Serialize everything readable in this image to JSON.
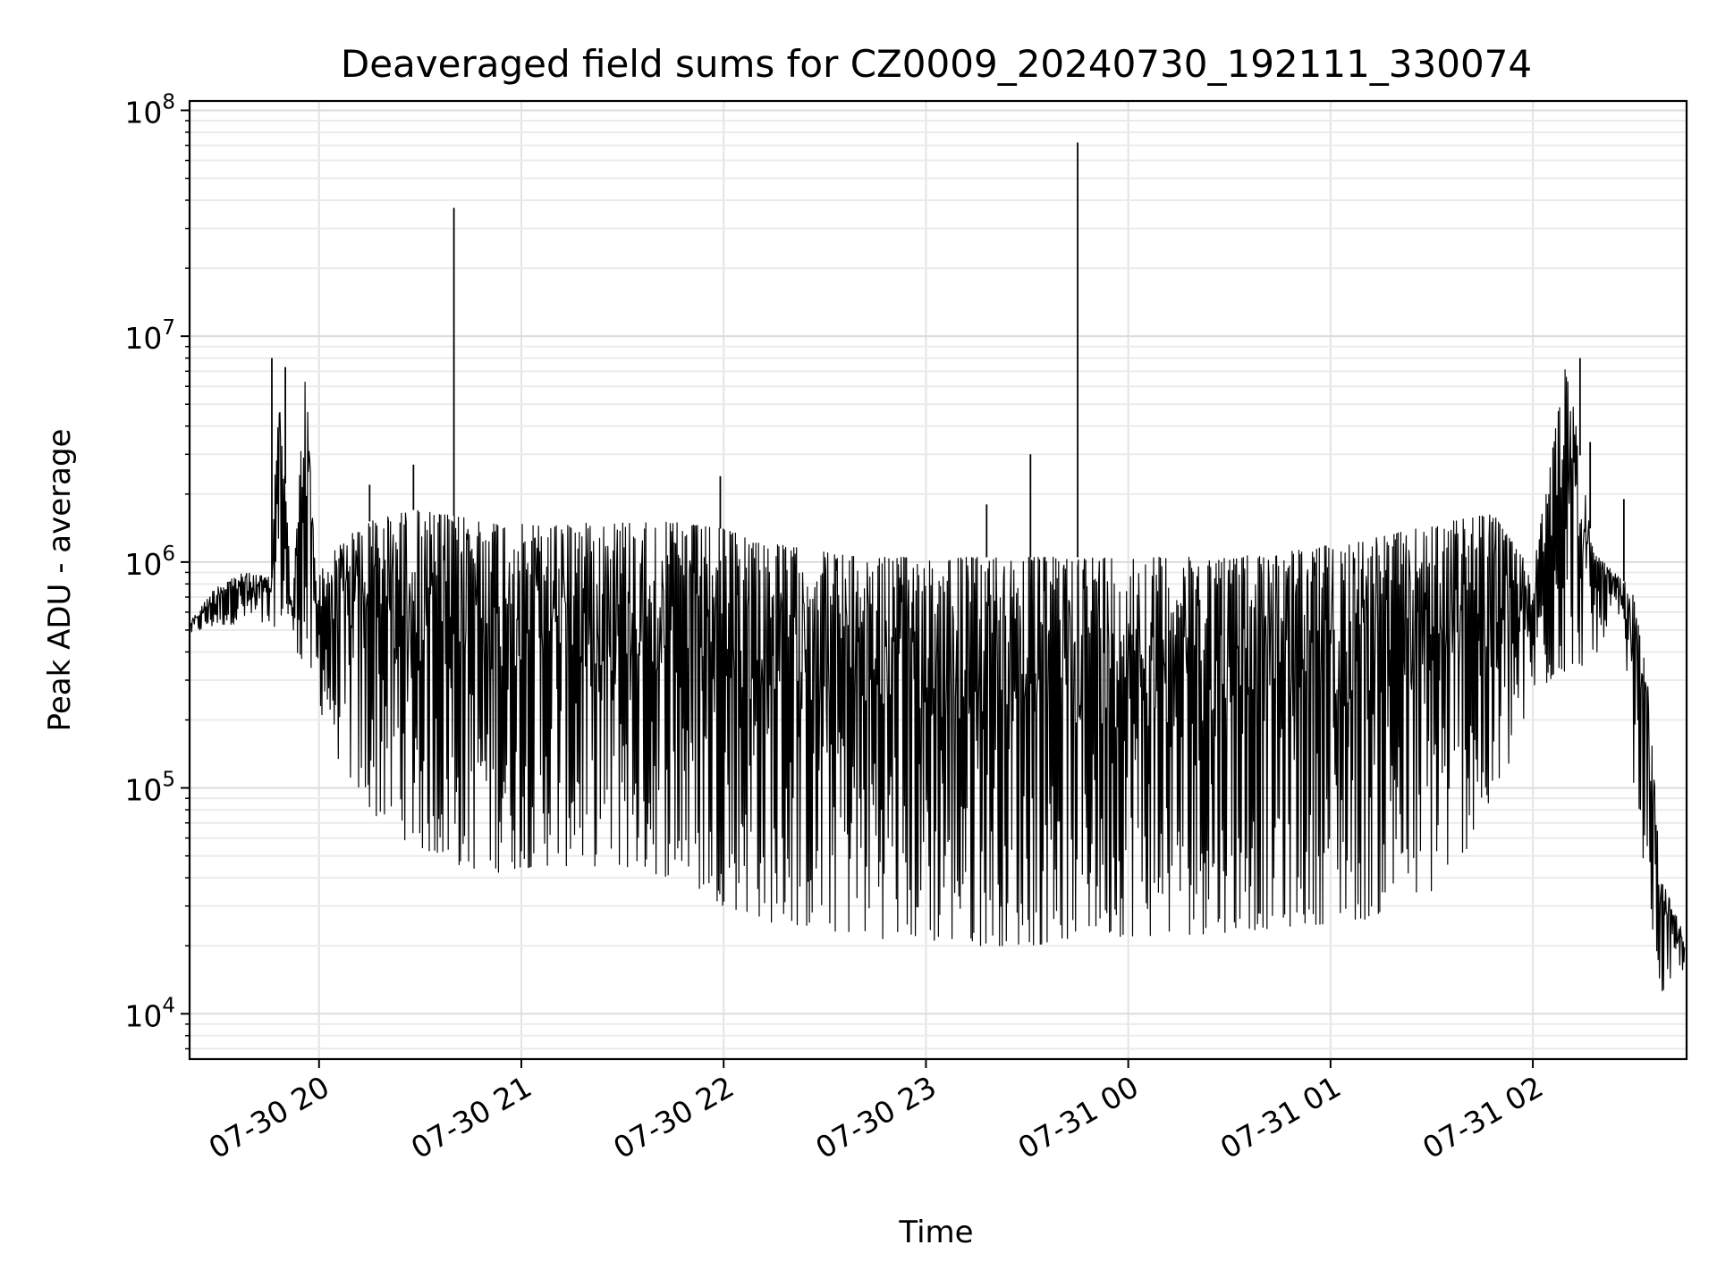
{
  "chart_data": {
    "type": "line",
    "title": "Deaveraged field sums for CZ0009_20240730_192111_330074",
    "xlabel": "Time",
    "ylabel": "Peak ADU - average",
    "yscale": "log",
    "ylim": [
      6300,
      110000000
    ],
    "xlim": [
      "2024-07-30 19:21:36",
      "2024-07-31 02:45:36"
    ],
    "grid": true,
    "line_color": "#000000",
    "x_ticks": [
      {
        "label": "07-30 20",
        "value": "2024-07-30 20:00"
      },
      {
        "label": "07-30 21",
        "value": "2024-07-30 21:00"
      },
      {
        "label": "07-30 22",
        "value": "2024-07-30 22:00"
      },
      {
        "label": "07-30 23",
        "value": "2024-07-30 23:00"
      },
      {
        "label": "07-31 00",
        "value": "2024-07-31 00:00"
      },
      {
        "label": "07-31 01",
        "value": "2024-07-31 01:00"
      },
      {
        "label": "07-31 02",
        "value": "2024-07-31 02:00"
      }
    ],
    "y_ticks": [
      {
        "base": "10",
        "exp": "4",
        "value": 10000
      },
      {
        "base": "10",
        "exp": "5",
        "value": 100000
      },
      {
        "base": "10",
        "exp": "6",
        "value": 1000000
      },
      {
        "base": "10",
        "exp": "7",
        "value": 10000000
      },
      {
        "base": "10",
        "exp": "8",
        "value": 100000000
      }
    ],
    "series": [
      {
        "x": [
          "2024-07-30 19:22",
          "2024-07-30 19:30",
          "2024-07-30 19:38",
          "2024-07-30 19:46",
          "2024-07-30 19:48",
          "2024-07-30 19:52",
          "2024-07-30 19:56",
          "2024-07-30 19:59",
          "2024-07-30 20:06",
          "2024-07-30 20:14",
          "2024-07-30 20:28",
          "2024-07-30 20:40",
          "2024-07-30 20:52",
          "2024-07-30 21:05",
          "2024-07-30 21:25",
          "2024-07-30 21:45",
          "2024-07-30 22:00",
          "2024-07-30 22:15",
          "2024-07-30 22:40",
          "2024-07-30 23:10",
          "2024-07-30 23:32",
          "2024-07-30 23:48",
          "2024-07-31 00:12",
          "2024-07-31 00:30",
          "2024-07-31 00:45",
          "2024-07-31 01:10",
          "2024-07-31 01:30",
          "2024-07-31 01:48",
          "2024-07-31 02:00",
          "2024-07-31 02:10",
          "2024-07-31 02:18",
          "2024-07-31 02:24",
          "2024-07-31 02:28",
          "2024-07-31 02:30",
          "2024-07-31 02:34",
          "2024-07-31 02:38",
          "2024-07-31 02:45"
        ],
        "envelope_high": [
          550000,
          800000,
          900000,
          850000,
          8000000,
          620000,
          7300000,
          850000,
          1200000,
          1500000,
          1700000,
          1600000,
          1500000,
          1450000,
          1500000,
          1500000,
          1400000,
          1200000,
          1050000,
          1050000,
          1050000,
          1050000,
          1050000,
          1050000,
          1100000,
          1250000,
          1450000,
          1650000,
          900000,
          8000000,
          1100000,
          900000,
          800000,
          700000,
          300000,
          40000,
          22000
        ],
        "envelope_low": [
          480000,
          520000,
          540000,
          500000,
          550000,
          480000,
          300000,
          250000,
          130000,
          80000,
          55000,
          45000,
          42000,
          45000,
          45000,
          40000,
          30000,
          25000,
          22000,
          20000,
          20000,
          22000,
          22000,
          23000,
          24000,
          26000,
          34000,
          75000,
          250000,
          330000,
          360000,
          600000,
          300000,
          100000,
          35000,
          12000,
          16000
        ],
        "spikes": [
          {
            "x": "2024-07-30 19:46",
            "y": 8000000
          },
          {
            "x": "2024-07-30 19:50",
            "y": 7300000
          },
          {
            "x": "2024-07-30 20:15",
            "y": 2200000
          },
          {
            "x": "2024-07-30 20:28",
            "y": 2700000
          },
          {
            "x": "2024-07-30 20:40",
            "y": 37000000
          },
          {
            "x": "2024-07-30 21:59",
            "y": 2400000
          },
          {
            "x": "2024-07-30 23:18",
            "y": 1800000
          },
          {
            "x": "2024-07-30 23:31",
            "y": 3000000
          },
          {
            "x": "2024-07-30 23:45",
            "y": 72000000
          },
          {
            "x": "2024-07-31 02:14",
            "y": 8000000
          },
          {
            "x": "2024-07-31 02:17",
            "y": 3400000
          },
          {
            "x": "2024-07-31 02:27",
            "y": 1900000
          }
        ]
      }
    ]
  }
}
